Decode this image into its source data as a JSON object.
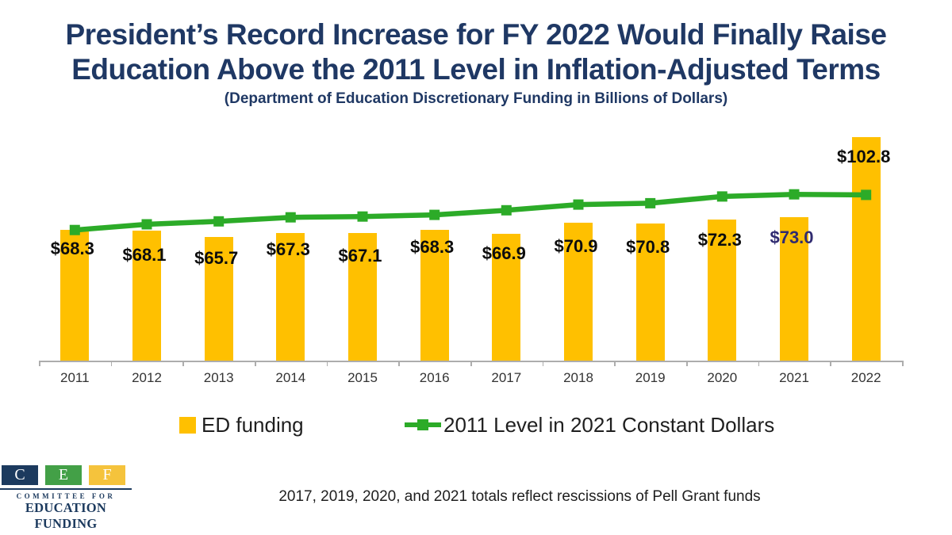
{
  "slide": {
    "title_lines": [
      "President’s Record Increase for FY 2022 Would Finally Raise",
      "Education Above the 2011 Level in Inflation-Adjusted Terms"
    ],
    "subtitle": "(Department of Education Discretionary Funding in Billions of Dollars)",
    "footnote": "2017, 2019, 2020, and 2021 totals reflect rescissions of Pell Grant funds"
  },
  "colors": {
    "title_navy": "#1F3864",
    "bar_gold": "#FFC000",
    "line_green": "#2CAB28",
    "label_black": "#0D0D0D",
    "label_highlight": "#302B70",
    "axis_gray": "#ADADAD",
    "year_label": "#333333",
    "logo_navy": "#1C3A5E",
    "logo_green": "#43A047",
    "logo_gold": "#F5C33C"
  },
  "chart_data": {
    "type": "bar",
    "categories": [
      "2011",
      "2012",
      "2013",
      "2014",
      "2015",
      "2016",
      "2017",
      "2018",
      "2019",
      "2020",
      "2021",
      "2022"
    ],
    "series": [
      {
        "name": "ED funding",
        "type": "bar",
        "color": "#FFC000",
        "values": [
          68.3,
          68.1,
          65.7,
          67.3,
          67.1,
          68.3,
          66.9,
          70.9,
          70.8,
          72.3,
          73.0,
          102.8
        ],
        "labels": [
          "$68.3",
          "$68.1",
          "$65.7",
          "$67.3",
          "$67.1",
          "$68.3",
          "$66.9",
          "$70.9",
          "$70.8",
          "$72.3",
          "$73.0",
          "$102.8"
        ],
        "label_highlight": {
          "index": 10,
          "color": "#302B70"
        }
      },
      {
        "name": "2011 Level in 2021 Constant Dollars",
        "type": "line",
        "color": "#2CAB28",
        "values": [
          68.3,
          70.4,
          71.5,
          73.0,
          73.3,
          73.9,
          75.6,
          77.7,
          78.2,
          80.7,
          81.5,
          81.3
        ]
      }
    ],
    "title": "President’s Record Increase for FY 2022 Would Finally Raise Education Above the 2011 Level in Inflation-Adjusted Terms",
    "subtitle": "(Department of Education Discretionary Funding in Billions of Dollars)",
    "xlabel": "",
    "ylabel": "",
    "ylim": [
      20,
      105
    ],
    "grid": false,
    "legend_position": "bottom"
  },
  "legend": {
    "items": [
      {
        "label": "ED funding",
        "swatch": "gold-square"
      },
      {
        "label": "2011 Level in 2021 Constant Dollars",
        "swatch": "green-line-marker"
      }
    ]
  },
  "logo": {
    "letters": [
      "C",
      "E",
      "F"
    ],
    "committee_for": "COMMITTEE FOR",
    "education_funding": "EDUCATION FUNDING"
  }
}
